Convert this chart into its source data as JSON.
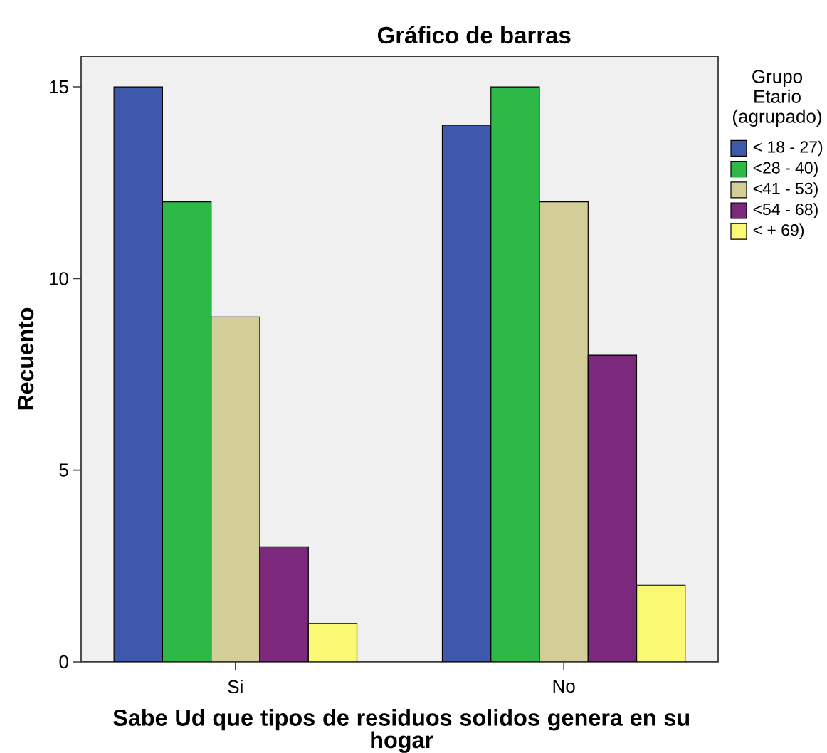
{
  "chart_data": {
    "type": "bar",
    "title": "Gráfico de barras",
    "xlabel": "Sabe Ud que tipos de residuos solidos genera en su hogar",
    "ylabel": "Recuento",
    "legend_title": "Grupo Etario (agrupado)",
    "categories": [
      "Si",
      "No"
    ],
    "series": [
      {
        "name": "< 18 - 27)",
        "color": "#3e58ac",
        "values": [
          15,
          14
        ]
      },
      {
        "name": "<28 - 40)",
        "color": "#2eb848",
        "values": [
          12,
          15
        ]
      },
      {
        "name": "<41 - 53)",
        "color": "#d3ce97",
        "values": [
          9,
          12
        ]
      },
      {
        "name": "<54 - 68)",
        "color": "#7b287d",
        "values": [
          3,
          8
        ]
      },
      {
        "name": "< + 69)",
        "color": "#fbf873",
        "values": [
          1,
          2
        ]
      }
    ],
    "ylim": [
      0,
      15.8
    ],
    "yticks": [
      0,
      5,
      10,
      15
    ],
    "legend": "right"
  }
}
